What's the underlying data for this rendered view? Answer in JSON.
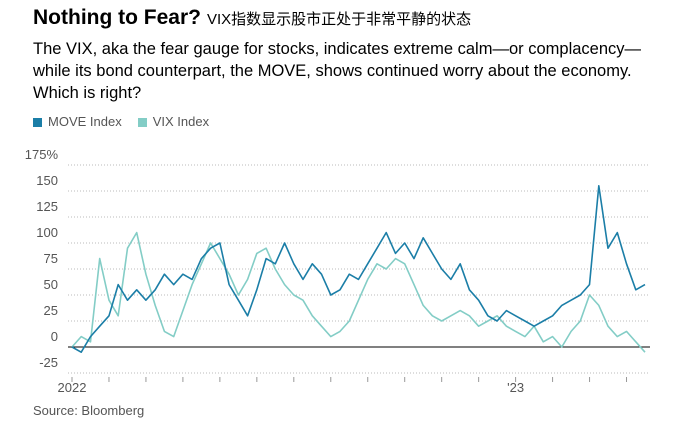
{
  "chart_data": {
    "type": "line",
    "title": "Nothing to Fear?",
    "title_note": "VIX指数显示股市正处于非常平静的状态",
    "subtitle": "The VIX, aka the fear gauge for stocks, indicates extreme calm—or complacency—while its bond counterpart, the MOVE, shows continued worry about the economy. Which is right?",
    "source": "Source: Bloomberg",
    "categories": [
      "2022",
      null,
      null,
      null,
      null,
      null,
      null,
      null,
      null,
      null,
      null,
      null,
      null,
      null,
      null,
      null,
      null,
      null,
      null,
      null,
      null,
      null,
      null,
      null,
      null,
      null,
      null,
      null,
      null,
      null,
      null,
      null,
      null,
      null,
      null,
      null,
      null,
      null,
      null,
      null,
      null,
      null,
      null,
      null,
      null,
      null,
      null,
      null,
      "'23",
      null,
      null,
      null,
      null,
      null,
      null,
      null,
      null,
      null,
      null,
      null,
      null,
      null,
      null
    ],
    "series": [
      {
        "name": "MOVE Index",
        "color": "#1b7ea7",
        "values": [
          0,
          -5,
          10,
          20,
          30,
          60,
          45,
          55,
          45,
          55,
          70,
          60,
          70,
          65,
          85,
          95,
          100,
          60,
          45,
          30,
          55,
          85,
          80,
          100,
          80,
          65,
          80,
          70,
          50,
          55,
          70,
          65,
          80,
          95,
          110,
          90,
          100,
          85,
          105,
          90,
          75,
          65,
          80,
          55,
          45,
          30,
          25,
          35,
          30,
          25,
          20,
          25,
          30,
          40,
          45,
          50,
          60,
          155,
          95,
          110,
          80,
          55,
          60
        ]
      },
      {
        "name": "VIX Index",
        "color": "#83cdc6",
        "values": [
          0,
          10,
          5,
          85,
          45,
          30,
          95,
          110,
          70,
          40,
          15,
          10,
          35,
          60,
          80,
          100,
          85,
          70,
          50,
          65,
          90,
          95,
          75,
          60,
          50,
          45,
          30,
          20,
          10,
          15,
          25,
          45,
          65,
          80,
          75,
          85,
          80,
          60,
          40,
          30,
          25,
          30,
          35,
          30,
          20,
          25,
          30,
          20,
          15,
          10,
          20,
          5,
          10,
          0,
          15,
          25,
          50,
          40,
          20,
          10,
          15,
          5,
          -5
        ]
      }
    ],
    "ylim": [
      -25,
      175
    ],
    "yticks": [
      -25,
      0,
      25,
      50,
      75,
      100,
      125,
      150,
      {
        "value": 175,
        "label": "175%"
      }
    ],
    "grid": true
  }
}
